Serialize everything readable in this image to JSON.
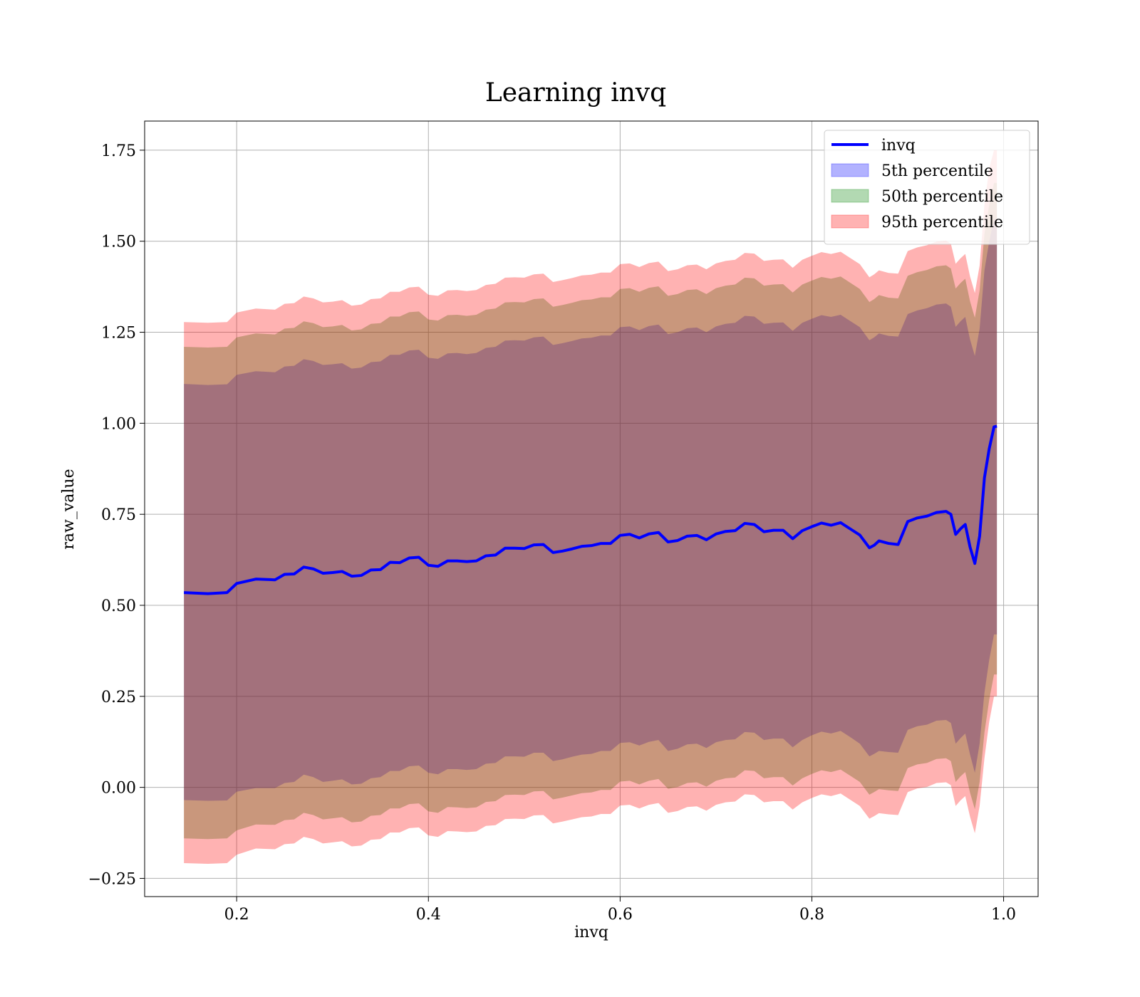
{
  "chart_data": {
    "type": "area",
    "title": "Learning invq",
    "xlabel": "invq",
    "ylabel": "raw_value",
    "xlim": [
      0.104,
      1.036
    ],
    "ylim": [
      -0.3,
      1.83
    ],
    "grid": true,
    "legend_position": "top-right",
    "x_ticks": [
      {
        "value": 0.2,
        "label": "0.2"
      },
      {
        "value": 0.4,
        "label": "0.4"
      },
      {
        "value": 0.6,
        "label": "0.6"
      },
      {
        "value": 0.8,
        "label": "0.8"
      },
      {
        "value": 1.0,
        "label": "1.0"
      }
    ],
    "y_ticks": [
      {
        "value": -0.25,
        "label": "−0.25"
      },
      {
        "value": 0.0,
        "label": "0.00"
      },
      {
        "value": 0.25,
        "label": "0.25"
      },
      {
        "value": 0.5,
        "label": "0.50"
      },
      {
        "value": 0.75,
        "label": "0.75"
      },
      {
        "value": 1.0,
        "label": "1.00"
      },
      {
        "value": 1.25,
        "label": "1.25"
      },
      {
        "value": 1.5,
        "label": "1.50"
      },
      {
        "value": 1.75,
        "label": "1.75"
      }
    ],
    "x": [
      0.145,
      0.17,
      0.19,
      0.2,
      0.22,
      0.24,
      0.25,
      0.26,
      0.27,
      0.28,
      0.29,
      0.3,
      0.31,
      0.32,
      0.33,
      0.34,
      0.35,
      0.36,
      0.37,
      0.38,
      0.39,
      0.4,
      0.41,
      0.42,
      0.43,
      0.44,
      0.45,
      0.46,
      0.47,
      0.48,
      0.49,
      0.5,
      0.51,
      0.52,
      0.53,
      0.54,
      0.55,
      0.56,
      0.57,
      0.58,
      0.59,
      0.6,
      0.61,
      0.62,
      0.63,
      0.64,
      0.65,
      0.66,
      0.67,
      0.68,
      0.69,
      0.7,
      0.71,
      0.72,
      0.73,
      0.74,
      0.75,
      0.76,
      0.77,
      0.78,
      0.79,
      0.8,
      0.81,
      0.82,
      0.83,
      0.84,
      0.85,
      0.86,
      0.865,
      0.87,
      0.88,
      0.89,
      0.9,
      0.91,
      0.92,
      0.93,
      0.94,
      0.945,
      0.95,
      0.955,
      0.96,
      0.965,
      0.97,
      0.975,
      0.98,
      0.985,
      0.99,
      0.993
    ],
    "series": [
      {
        "name": "invq",
        "color": "#0000ff",
        "values": [
          0.535,
          0.532,
          0.535,
          0.56,
          0.572,
          0.57,
          0.585,
          0.586,
          0.605,
          0.6,
          0.588,
          0.59,
          0.593,
          0.58,
          0.582,
          0.597,
          0.598,
          0.618,
          0.617,
          0.63,
          0.632,
          0.61,
          0.607,
          0.622,
          0.622,
          0.62,
          0.622,
          0.636,
          0.638,
          0.657,
          0.657,
          0.656,
          0.666,
          0.667,
          0.645,
          0.649,
          0.655,
          0.662,
          0.664,
          0.67,
          0.67,
          0.692,
          0.695,
          0.685,
          0.696,
          0.7,
          0.674,
          0.678,
          0.69,
          0.692,
          0.68,
          0.696,
          0.703,
          0.705,
          0.725,
          0.722,
          0.702,
          0.706,
          0.706,
          0.683,
          0.705,
          0.716,
          0.726,
          0.72,
          0.727,
          0.71,
          0.693,
          0.658,
          0.665,
          0.677,
          0.67,
          0.667,
          0.73,
          0.74,
          0.745,
          0.755,
          0.758,
          0.75,
          0.695,
          0.71,
          0.722,
          0.66,
          0.615,
          0.69,
          0.85,
          0.93,
          0.99,
          0.992
        ]
      },
      {
        "name": "5th percentile",
        "color": "#0000ff",
        "fill_opacity": 0.3,
        "lower": [
          -0.035,
          -0.037,
          -0.036,
          -0.012,
          -0.002,
          -0.002,
          0.012,
          0.015,
          0.035,
          0.028,
          0.015,
          0.018,
          0.022,
          0.008,
          0.01,
          0.025,
          0.028,
          0.045,
          0.045,
          0.058,
          0.06,
          0.04,
          0.036,
          0.05,
          0.05,
          0.048,
          0.05,
          0.065,
          0.067,
          0.085,
          0.085,
          0.084,
          0.095,
          0.095,
          0.072,
          0.077,
          0.084,
          0.09,
          0.092,
          0.1,
          0.1,
          0.122,
          0.124,
          0.115,
          0.125,
          0.13,
          0.1,
          0.106,
          0.118,
          0.12,
          0.108,
          0.124,
          0.13,
          0.132,
          0.152,
          0.15,
          0.13,
          0.134,
          0.134,
          0.11,
          0.13,
          0.143,
          0.153,
          0.148,
          0.155,
          0.138,
          0.12,
          0.085,
          0.092,
          0.1,
          0.097,
          0.095,
          0.158,
          0.168,
          0.172,
          0.183,
          0.185,
          0.177,
          0.12,
          0.135,
          0.148,
          0.09,
          0.04,
          0.12,
          0.26,
          0.35,
          0.42,
          0.42
        ],
        "upper": [
          1.108,
          1.105,
          1.107,
          1.133,
          1.143,
          1.14,
          1.156,
          1.158,
          1.176,
          1.171,
          1.16,
          1.162,
          1.165,
          1.15,
          1.153,
          1.168,
          1.17,
          1.188,
          1.188,
          1.2,
          1.202,
          1.18,
          1.177,
          1.192,
          1.193,
          1.19,
          1.193,
          1.207,
          1.21,
          1.227,
          1.228,
          1.227,
          1.236,
          1.238,
          1.215,
          1.22,
          1.226,
          1.233,
          1.235,
          1.241,
          1.241,
          1.264,
          1.266,
          1.256,
          1.267,
          1.271,
          1.245,
          1.25,
          1.261,
          1.263,
          1.25,
          1.266,
          1.273,
          1.276,
          1.295,
          1.293,
          1.273,
          1.276,
          1.277,
          1.254,
          1.276,
          1.287,
          1.297,
          1.292,
          1.298,
          1.281,
          1.264,
          1.228,
          1.236,
          1.247,
          1.24,
          1.238,
          1.3,
          1.31,
          1.316,
          1.326,
          1.329,
          1.32,
          1.265,
          1.28,
          1.292,
          1.23,
          1.185,
          1.26,
          1.42,
          1.5,
          1.56,
          1.56
        ]
      },
      {
        "name": "50th percentile",
        "color": "#008000",
        "fill_opacity": 0.3,
        "lower": [
          -0.14,
          -0.142,
          -0.14,
          -0.118,
          -0.102,
          -0.103,
          -0.09,
          -0.088,
          -0.07,
          -0.076,
          -0.088,
          -0.085,
          -0.082,
          -0.096,
          -0.094,
          -0.078,
          -0.076,
          -0.058,
          -0.058,
          -0.046,
          -0.044,
          -0.066,
          -0.07,
          -0.054,
          -0.055,
          -0.057,
          -0.055,
          -0.04,
          -0.038,
          -0.021,
          -0.02,
          -0.021,
          -0.011,
          -0.01,
          -0.033,
          -0.028,
          -0.022,
          -0.016,
          -0.014,
          -0.007,
          -0.007,
          0.016,
          0.018,
          0.008,
          0.018,
          0.023,
          -0.004,
          0.001,
          0.012,
          0.014,
          0.002,
          0.018,
          0.025,
          0.027,
          0.047,
          0.045,
          0.025,
          0.028,
          0.028,
          0.005,
          0.025,
          0.037,
          0.047,
          0.042,
          0.049,
          0.032,
          0.015,
          -0.02,
          -0.013,
          -0.005,
          -0.008,
          -0.01,
          0.053,
          0.063,
          0.067,
          0.078,
          0.08,
          0.072,
          0.015,
          0.03,
          0.042,
          -0.015,
          -0.06,
          0.015,
          0.15,
          0.24,
          0.31,
          0.31
        ],
        "upper": [
          1.21,
          1.208,
          1.21,
          1.236,
          1.247,
          1.244,
          1.26,
          1.262,
          1.28,
          1.275,
          1.264,
          1.266,
          1.27,
          1.255,
          1.258,
          1.273,
          1.275,
          1.293,
          1.293,
          1.305,
          1.307,
          1.285,
          1.282,
          1.297,
          1.298,
          1.295,
          1.298,
          1.312,
          1.315,
          1.332,
          1.333,
          1.332,
          1.341,
          1.343,
          1.32,
          1.325,
          1.331,
          1.338,
          1.34,
          1.346,
          1.346,
          1.369,
          1.371,
          1.361,
          1.372,
          1.376,
          1.35,
          1.355,
          1.366,
          1.368,
          1.355,
          1.371,
          1.378,
          1.381,
          1.4,
          1.398,
          1.378,
          1.381,
          1.382,
          1.359,
          1.381,
          1.392,
          1.402,
          1.397,
          1.403,
          1.386,
          1.369,
          1.333,
          1.341,
          1.352,
          1.345,
          1.343,
          1.405,
          1.415,
          1.421,
          1.431,
          1.434,
          1.425,
          1.37,
          1.385,
          1.397,
          1.335,
          1.29,
          1.365,
          1.52,
          1.6,
          1.66,
          1.66
        ]
      },
      {
        "name": "95th percentile",
        "color": "#ff0000",
        "fill_opacity": 0.3,
        "lower": [
          -0.208,
          -0.21,
          -0.208,
          -0.185,
          -0.168,
          -0.17,
          -0.156,
          -0.154,
          -0.136,
          -0.142,
          -0.154,
          -0.151,
          -0.148,
          -0.162,
          -0.16,
          -0.144,
          -0.142,
          -0.124,
          -0.124,
          -0.112,
          -0.11,
          -0.132,
          -0.136,
          -0.12,
          -0.121,
          -0.123,
          -0.121,
          -0.106,
          -0.104,
          -0.087,
          -0.086,
          -0.087,
          -0.077,
          -0.076,
          -0.099,
          -0.094,
          -0.088,
          -0.082,
          -0.08,
          -0.073,
          -0.073,
          -0.05,
          -0.048,
          -0.058,
          -0.048,
          -0.043,
          -0.07,
          -0.065,
          -0.054,
          -0.052,
          -0.064,
          -0.048,
          -0.041,
          -0.039,
          -0.019,
          -0.021,
          -0.041,
          -0.038,
          -0.038,
          -0.061,
          -0.041,
          -0.029,
          -0.019,
          -0.024,
          -0.017,
          -0.034,
          -0.051,
          -0.086,
          -0.079,
          -0.071,
          -0.074,
          -0.076,
          -0.013,
          -0.003,
          0.001,
          0.012,
          0.014,
          0.006,
          -0.051,
          -0.036,
          -0.024,
          -0.081,
          -0.126,
          -0.051,
          0.08,
          0.18,
          0.25,
          0.25
        ],
        "upper": [
          1.278,
          1.276,
          1.278,
          1.304,
          1.315,
          1.312,
          1.328,
          1.33,
          1.348,
          1.343,
          1.332,
          1.334,
          1.338,
          1.323,
          1.326,
          1.341,
          1.343,
          1.361,
          1.361,
          1.373,
          1.375,
          1.353,
          1.35,
          1.365,
          1.366,
          1.363,
          1.366,
          1.38,
          1.383,
          1.4,
          1.401,
          1.4,
          1.409,
          1.411,
          1.388,
          1.393,
          1.399,
          1.406,
          1.408,
          1.414,
          1.414,
          1.437,
          1.439,
          1.429,
          1.44,
          1.444,
          1.418,
          1.423,
          1.434,
          1.436,
          1.423,
          1.439,
          1.446,
          1.449,
          1.468,
          1.466,
          1.446,
          1.449,
          1.45,
          1.427,
          1.449,
          1.46,
          1.47,
          1.465,
          1.471,
          1.454,
          1.437,
          1.401,
          1.409,
          1.42,
          1.413,
          1.411,
          1.473,
          1.483,
          1.489,
          1.499,
          1.502,
          1.493,
          1.438,
          1.453,
          1.465,
          1.403,
          1.358,
          1.433,
          1.6,
          1.7,
          1.75,
          1.75
        ]
      }
    ]
  }
}
